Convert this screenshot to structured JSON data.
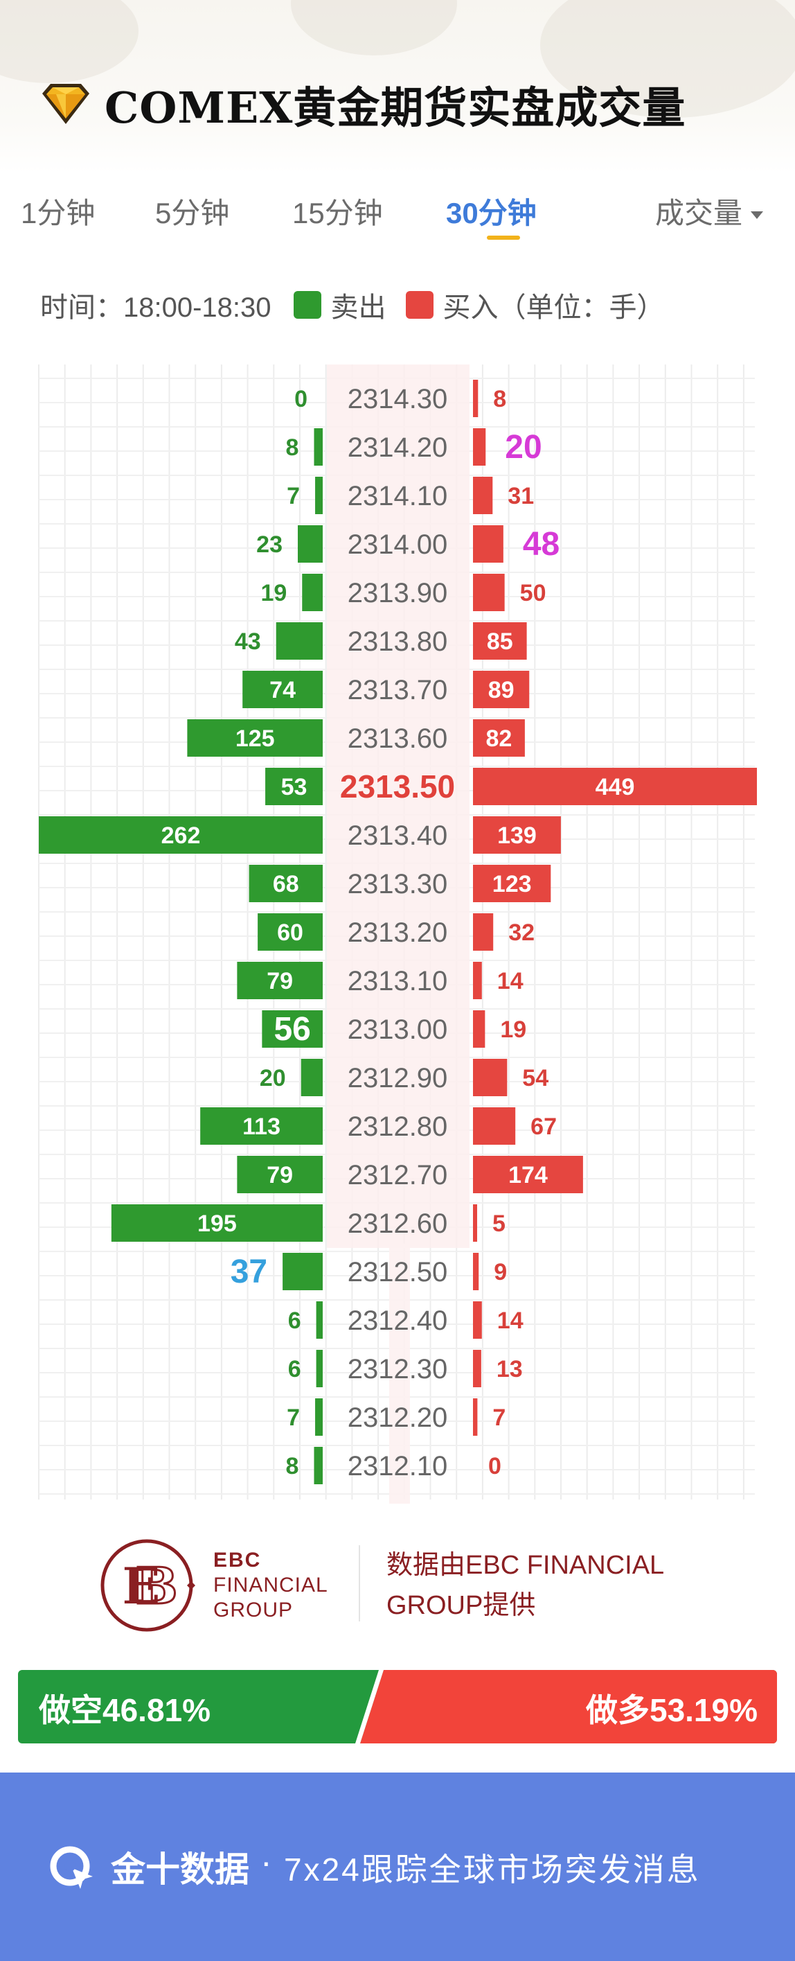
{
  "header": {
    "title": "COMEX黄金期货实盘成交量",
    "logo_icon": "diamond-icon"
  },
  "tabs": [
    {
      "label": "1分钟",
      "active": false
    },
    {
      "label": "5分钟",
      "active": false
    },
    {
      "label": "15分钟",
      "active": false
    },
    {
      "label": "30分钟",
      "active": true
    }
  ],
  "dropdown": {
    "label": "成交量"
  },
  "legend": {
    "time_label": "时间：18:00-18:30",
    "sell_label": "卖出",
    "buy_label": "买入（单位：手）",
    "sell_color": "#2f9a2f",
    "buy_color": "#e54640"
  },
  "chart_data": {
    "type": "bar",
    "orientation": "horizontal-butterfly",
    "current_price": "2313.50",
    "prices": [
      "2314.30",
      "2314.20",
      "2314.10",
      "2314.00",
      "2313.90",
      "2313.80",
      "2313.70",
      "2313.60",
      "2313.50",
      "2313.40",
      "2313.30",
      "2313.20",
      "2313.10",
      "2313.00",
      "2312.90",
      "2312.80",
      "2312.70",
      "2312.60",
      "2312.50",
      "2312.40",
      "2312.30",
      "2312.20",
      "2312.10"
    ],
    "series": [
      {
        "name": "卖出",
        "values": [
          0,
          8,
          7,
          23,
          19,
          43,
          74,
          125,
          53,
          262,
          68,
          60,
          79,
          56,
          20,
          113,
          79,
          195,
          37,
          6,
          6,
          7,
          8
        ]
      },
      {
        "name": "买入",
        "values": [
          8,
          20,
          31,
          48,
          50,
          85,
          89,
          82,
          449,
          139,
          123,
          32,
          14,
          19,
          54,
          67,
          174,
          5,
          9,
          14,
          13,
          7,
          0
        ]
      }
    ],
    "highlight_sell": [
      13,
      18
    ],
    "highlight_buy": [
      1,
      3
    ],
    "highlight_sell_color": "#35a0dd",
    "highlight_buy_color": "#d63ad6",
    "grid": true,
    "unit": "手"
  },
  "sponsor": {
    "logo_text": "EBC",
    "name_line1": "EBC",
    "name_line2": "FINANCIAL",
    "name_line3": "GROUP",
    "text": "数据由EBC FINANCIAL GROUP提供",
    "color": "#8a1f22"
  },
  "ratio": {
    "short_label": "做空46.81%",
    "long_label": "做多53.19%",
    "short_value": 46.81,
    "long_value": 53.19
  },
  "footer": {
    "brand": "金十数据",
    "dot": "·",
    "slogan": "7x24跟踪全球市场突发消息",
    "logo_icon": "jin10-logo-icon"
  }
}
